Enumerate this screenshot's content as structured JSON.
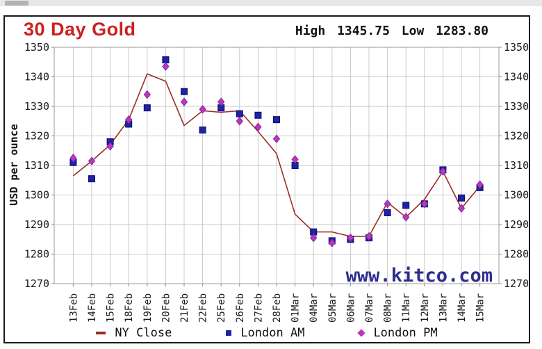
{
  "header": {
    "title": "30 Day Gold",
    "stats": {
      "high_label": "High",
      "high_value": "1345.75",
      "low_label": "Low",
      "low_value": "1283.80"
    }
  },
  "chart": {
    "y_axis_title": "USD per ounce",
    "watermark": "www.kitco.com"
  },
  "colors": {
    "title_red": "#cc2020",
    "ny_close_line": "#9b2d22",
    "london_am_blue": "#2121a8",
    "london_am_stroke": "#0c0c66",
    "london_pm_magenta": "#bf35bf",
    "london_pm_stroke": "#7d2a9e",
    "watermark_navy": "#2d2d8e",
    "grid_gray": "#c9c9c9",
    "plot_border_gray": "#999999"
  },
  "chart_data": {
    "type": "line",
    "title": "30 Day Gold",
    "ylabel": "USD per ounce",
    "xlabel": "",
    "ylim": [
      1270,
      1350
    ],
    "ytick_step": 10,
    "grid": true,
    "legend_position": "bottom",
    "high": 1345.75,
    "low": 1283.8,
    "x": [
      "13Feb",
      "14Feb",
      "15Feb",
      "18Feb",
      "19Feb",
      "20Feb",
      "21Feb",
      "22Feb",
      "25Feb",
      "26Feb",
      "27Feb",
      "28Feb",
      "01Mar",
      "04Mar",
      "05Mar",
      "06Mar",
      "07Mar",
      "08Mar",
      "11Mar",
      "12Mar",
      "13Mar",
      "14Mar",
      "15Mar"
    ],
    "series": [
      {
        "name": "NY Close",
        "style": "line",
        "marker": "none",
        "color": "#9b2d22",
        "values": [
          1306.5,
          1311.5,
          1317,
          1325.5,
          1341,
          1338.5,
          1323.5,
          1328.5,
          1328,
          1328.5,
          1321.5,
          1314,
          1293.5,
          1287.5,
          1287.5,
          1286,
          1286,
          1297.5,
          1292.5,
          1298.5,
          1308,
          1295.5,
          1303
        ]
      },
      {
        "name": "London AM",
        "style": "scatter",
        "marker": "square",
        "color": "#2121a8",
        "values": [
          1311,
          1305.5,
          1318,
          1324,
          1329.5,
          1345.75,
          1335,
          1322,
          1329.5,
          1327.5,
          1327,
          1325.5,
          1310,
          1287.5,
          1284.5,
          1285,
          1285.5,
          1294,
          1296.5,
          1297,
          1308.5,
          1299,
          1302.5
        ]
      },
      {
        "name": "London PM",
        "style": "scatter",
        "marker": "diamond",
        "color": "#bf35bf",
        "values": [
          1312.5,
          1311.5,
          1316.5,
          1325.5,
          1334,
          1343.5,
          1331.5,
          1329,
          1331.5,
          1325,
          1323,
          1319,
          1312,
          1285.5,
          1283.8,
          1285.5,
          1286,
          1297,
          1292.5,
          1297,
          1308,
          1295.5,
          1303.5
        ]
      }
    ]
  }
}
